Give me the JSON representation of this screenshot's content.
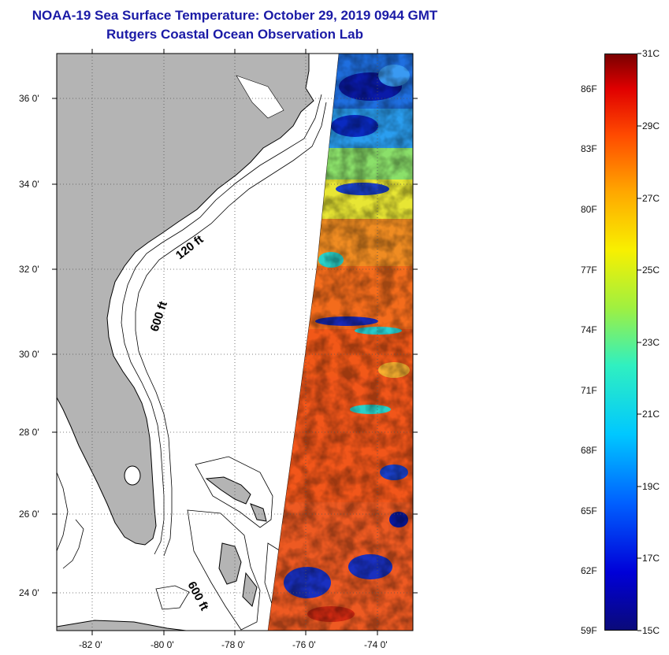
{
  "title": "NOAA-19 Sea Surface Temperature:  October 29, 2019 0944 GMT",
  "subtitle": "Rutgers Coastal Ocean Observation Lab",
  "map": {
    "lon_range": [
      -83,
      -73
    ],
    "lat_range": [
      23,
      37
    ],
    "lon_ticks": [
      "-82 0'",
      "-80 0'",
      "-78 0'",
      "-76 0'",
      "-74 0'"
    ],
    "lat_ticks": [
      "36 0'",
      "34 0'",
      "32 0'",
      "30 0'",
      "28 0'",
      "26 0'",
      "24 0'"
    ],
    "contour_labels": [
      "120 ft",
      "600 ft",
      "600 ft"
    ],
    "colors": {
      "land": "#b4b4b4",
      "ocean_blank": "#ffffff",
      "text_blue": "#1a1aa6"
    }
  },
  "colorbar": {
    "celsius_labels": [
      "31C",
      "29C",
      "27C",
      "25C",
      "23C",
      "21C",
      "19C",
      "17C",
      "15C"
    ],
    "fahrenheit_labels": [
      "86F",
      "83F",
      "80F",
      "77F",
      "74F",
      "71F",
      "68F",
      "65F",
      "62F",
      "59F"
    ],
    "celsius_range": [
      15,
      31
    ],
    "fahrenheit_range": [
      59,
      88
    ]
  }
}
